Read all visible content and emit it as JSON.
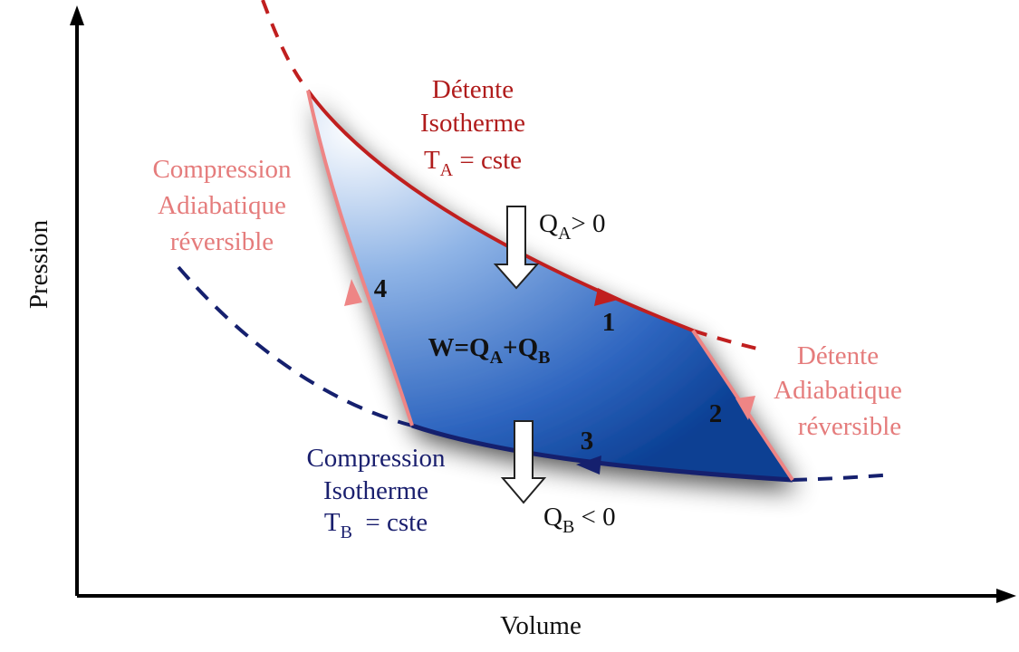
{
  "axes": {
    "x_label": "Volume",
    "y_label": "Pression"
  },
  "hot_isotherm": {
    "lines": [
      "Détente",
      "Isotherme"
    ],
    "temp": {
      "symbol": "T",
      "sub": "A",
      "rest": " = cste"
    }
  },
  "cold_isotherm": {
    "lines": [
      "Compression",
      "Isotherme"
    ],
    "temp": {
      "symbol": "T",
      "sub": "B",
      "rest": "  = cste"
    }
  },
  "compression_adiabatic": {
    "lines": [
      "Compression",
      "Adiabatique",
      "réversible"
    ]
  },
  "expansion_adiabatic": {
    "lines": [
      "Détente",
      "Adiabatique",
      "réversible"
    ]
  },
  "heat_in": {
    "symbol": "Q",
    "sub": "A",
    "rest": "> 0"
  },
  "heat_out": {
    "symbol": "Q",
    "sub": "B",
    "rest": " < 0"
  },
  "work": {
    "w": "W=Q",
    "sub1": "A",
    "plus": "+Q",
    "sub2": "B"
  },
  "steps": [
    "1",
    "2",
    "3",
    "4"
  ]
}
